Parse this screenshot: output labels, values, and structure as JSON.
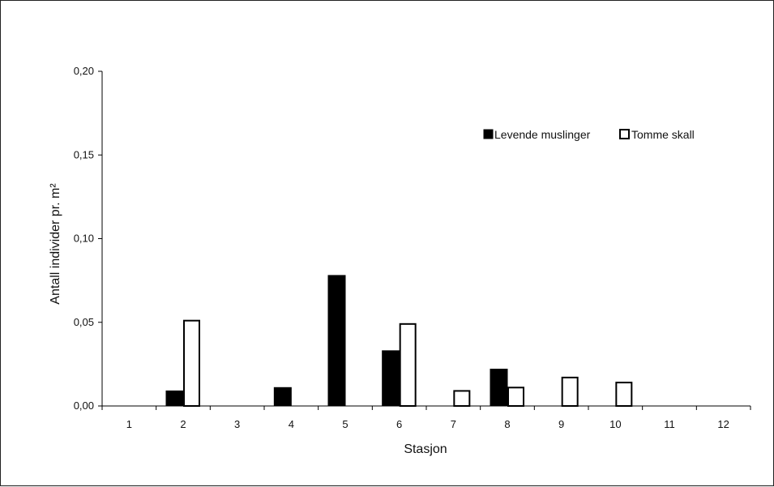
{
  "chart_data": {
    "type": "bar",
    "title": "",
    "xlabel": "Stasjon",
    "ylabel": "Antall individer pr. m²",
    "categories": [
      "1",
      "2",
      "3",
      "4",
      "5",
      "6",
      "7",
      "8",
      "9",
      "10",
      "11",
      "12"
    ],
    "yticks": [
      "0,00",
      "0,05",
      "0,10",
      "0,15",
      "0,20"
    ],
    "ylim": [
      0,
      0.2
    ],
    "grid": false,
    "legend_position": "top-right",
    "series": [
      {
        "name": "Levende muslinger",
        "color": "#000000",
        "values": [
          0,
          0.009,
          0,
          0.011,
          0.078,
          0.033,
          0,
          0.022,
          0,
          0,
          0,
          0
        ]
      },
      {
        "name": "Tomme skall",
        "color": "#ffffff",
        "values": [
          0,
          0.051,
          0,
          0,
          0,
          0.049,
          0.009,
          0.011,
          0.017,
          0.014,
          0,
          0
        ]
      }
    ]
  }
}
